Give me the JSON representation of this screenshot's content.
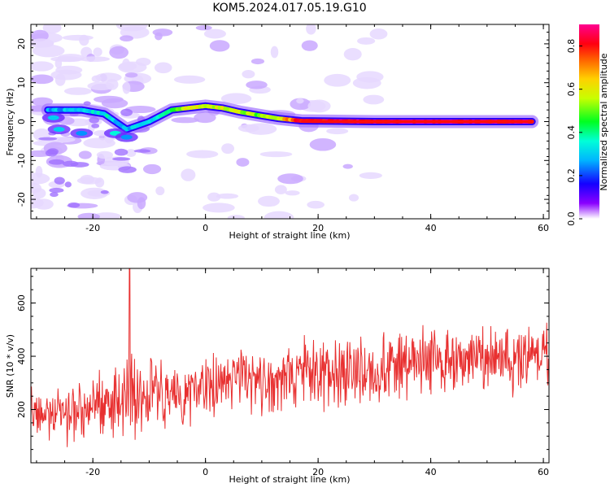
{
  "title": "KOM5.2024.017.05.19.G10",
  "chart_data": [
    {
      "type": "heatmap",
      "xlabel": "Height of straight line (km)",
      "ylabel": "Frequency (Hz)",
      "xlim": [
        -31,
        61
      ],
      "ylim": [
        -25,
        25
      ],
      "xticks": [
        -20,
        0,
        20,
        40,
        60
      ],
      "yticks": [
        -20,
        -10,
        0,
        10,
        20
      ],
      "colorbar": {
        "label": "Normalized spectral amplitude",
        "range": [
          0,
          0.9
        ],
        "ticks": [
          0.0,
          0.2,
          0.4,
          0.6,
          0.8
        ]
      },
      "ridge": {
        "description_points": [
          {
            "x": -28,
            "f": 3,
            "amp": 0.25
          },
          {
            "x": -22,
            "f": 3,
            "amp": 0.3
          },
          {
            "x": -18,
            "f": 2,
            "amp": 0.35
          },
          {
            "x": -14,
            "f": -2,
            "amp": 0.25
          },
          {
            "x": -10,
            "f": 0,
            "amp": 0.3
          },
          {
            "x": -6,
            "f": 3,
            "amp": 0.45
          },
          {
            "x": -3,
            "f": 3.5,
            "amp": 0.6
          },
          {
            "x": 0,
            "f": 4,
            "amp": 0.55
          },
          {
            "x": 3,
            "f": 3.5,
            "amp": 0.6
          },
          {
            "x": 6,
            "f": 2.5,
            "amp": 0.55
          },
          {
            "x": 10,
            "f": 1.5,
            "amp": 0.5
          },
          {
            "x": 13,
            "f": 0.8,
            "amp": 0.6
          },
          {
            "x": 17,
            "f": 0.2,
            "amp": 0.8
          },
          {
            "x": 30,
            "f": 0,
            "amp": 0.85
          },
          {
            "x": 45,
            "f": 0,
            "amp": 0.85
          },
          {
            "x": 58,
            "f": 0,
            "amp": 0.85
          }
        ]
      }
    },
    {
      "type": "line",
      "xlabel": "Height of straight line (km)",
      "ylabel": "SNR (10 * v/v)",
      "xlim": [
        -31,
        61
      ],
      "ylim": [
        0,
        730
      ],
      "xticks": [
        -20,
        0,
        20,
        40,
        60
      ],
      "yticks": [
        200,
        400,
        600
      ],
      "color": "#e83030",
      "trend": [
        {
          "x": -31,
          "mean": 170,
          "spread": 90
        },
        {
          "x": -20,
          "mean": 200,
          "spread": 110
        },
        {
          "x": -14,
          "mean": 230,
          "spread": 150
        },
        {
          "x": 0,
          "mean": 280,
          "spread": 120
        },
        {
          "x": 20,
          "mean": 340,
          "spread": 130
        },
        {
          "x": 40,
          "mean": 380,
          "spread": 120
        },
        {
          "x": 60,
          "mean": 400,
          "spread": 120
        }
      ],
      "peak": {
        "x": -13.5,
        "y": 730
      }
    }
  ]
}
